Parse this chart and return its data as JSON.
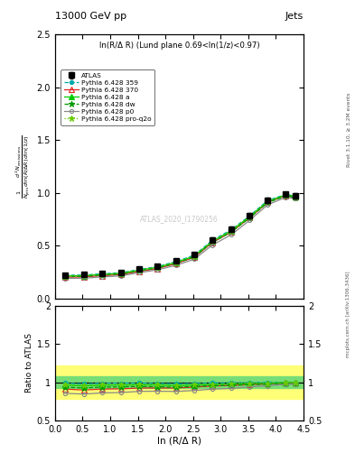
{
  "title": "13000 GeV pp",
  "title_right": "Jets",
  "annotation": "ln(R/Δ R) (Lund plane 0.69<ln(1/z)<0.97)",
  "watermark": "ATLAS_2020_I1790256",
  "rivet_label": "Rivet 3.1.10, ≥ 3.2M events",
  "mcplots_label": "mcplots.cern.ch [arXiv:1306.3436]",
  "xlabel": "ln (R/Δ R)",
  "ylabel_ratio": "Ratio to ATLAS",
  "xlim": [
    0,
    4.5
  ],
  "ylim_main": [
    0.0,
    2.5
  ],
  "ylim_ratio": [
    0.5,
    2.0
  ],
  "x_atlas": [
    0.18,
    0.52,
    0.85,
    1.19,
    1.52,
    1.85,
    2.19,
    2.52,
    2.85,
    3.19,
    3.52,
    3.85,
    4.18,
    4.35
  ],
  "y_atlas": [
    0.22,
    0.225,
    0.235,
    0.245,
    0.275,
    0.305,
    0.355,
    0.415,
    0.555,
    0.655,
    0.785,
    0.93,
    0.985,
    0.97
  ],
  "y_atlas_err": [
    0.015,
    0.012,
    0.012,
    0.012,
    0.013,
    0.014,
    0.016,
    0.02,
    0.023,
    0.026,
    0.028,
    0.028,
    0.023,
    0.023
  ],
  "x_mc": [
    0.18,
    0.52,
    0.85,
    1.19,
    1.52,
    1.85,
    2.19,
    2.52,
    2.85,
    3.19,
    3.52,
    3.85,
    4.18,
    4.35
  ],
  "series": [
    {
      "label": "Pythia 6.428 359",
      "color": "#00AAAA",
      "linestyle": "--",
      "marker": "o",
      "markersize": 3,
      "mfc": true,
      "y": [
        0.218,
        0.22,
        0.232,
        0.242,
        0.272,
        0.3,
        0.348,
        0.408,
        0.55,
        0.65,
        0.78,
        0.928,
        0.985,
        0.97
      ],
      "ratio": [
        0.99,
        0.978,
        0.987,
        0.988,
        0.99,
        0.984,
        0.979,
        0.983,
        0.991,
        0.992,
        0.994,
        0.998,
        1.0,
        1.0
      ]
    },
    {
      "label": "Pythia 6.428 370",
      "color": "#DD2222",
      "linestyle": "-",
      "marker": "^",
      "markersize": 4,
      "mfc": false,
      "y": [
        0.2,
        0.202,
        0.214,
        0.224,
        0.254,
        0.282,
        0.328,
        0.388,
        0.528,
        0.628,
        0.762,
        0.91,
        0.975,
        0.96
      ],
      "ratio": [
        0.91,
        0.899,
        0.91,
        0.914,
        0.924,
        0.925,
        0.924,
        0.937,
        0.951,
        0.958,
        0.97,
        0.978,
        0.99,
        0.99
      ]
    },
    {
      "label": "Pythia 6.428 a",
      "color": "#00CC00",
      "linestyle": "-",
      "marker": "^",
      "markersize": 4,
      "mfc": true,
      "y": [
        0.212,
        0.214,
        0.226,
        0.236,
        0.266,
        0.294,
        0.34,
        0.4,
        0.54,
        0.64,
        0.772,
        0.918,
        0.98,
        0.965
      ],
      "ratio": [
        0.964,
        0.952,
        0.962,
        0.963,
        0.967,
        0.964,
        0.957,
        0.964,
        0.973,
        0.977,
        0.983,
        0.987,
        0.995,
        0.995
      ]
    },
    {
      "label": "Pythia 6.428 dw",
      "color": "#009900",
      "linestyle": "--",
      "marker": "*",
      "markersize": 5,
      "mfc": true,
      "y": [
        0.206,
        0.208,
        0.22,
        0.23,
        0.26,
        0.287,
        0.332,
        0.392,
        0.53,
        0.628,
        0.76,
        0.906,
        0.97,
        0.956
      ],
      "ratio": [
        0.936,
        0.925,
        0.936,
        0.939,
        0.945,
        0.941,
        0.934,
        0.945,
        0.955,
        0.959,
        0.969,
        0.975,
        0.985,
        0.985
      ]
    },
    {
      "label": "Pythia 6.428 p0",
      "color": "#888888",
      "linestyle": "-",
      "marker": "o",
      "markersize": 3,
      "mfc": false,
      "y": [
        0.188,
        0.19,
        0.202,
        0.212,
        0.242,
        0.269,
        0.312,
        0.37,
        0.505,
        0.602,
        0.738,
        0.886,
        0.958,
        0.944
      ],
      "ratio": [
        0.855,
        0.845,
        0.86,
        0.865,
        0.88,
        0.882,
        0.879,
        0.892,
        0.91,
        0.919,
        0.94,
        0.953,
        0.973,
        0.973
      ]
    },
    {
      "label": "Pythia 6.428 pro-q2o",
      "color": "#66CC00",
      "linestyle": ":",
      "marker": "*",
      "markersize": 5,
      "mfc": true,
      "y": [
        0.213,
        0.215,
        0.227,
        0.237,
        0.267,
        0.295,
        0.341,
        0.401,
        0.541,
        0.641,
        0.773,
        0.919,
        0.981,
        0.966
      ],
      "ratio": [
        0.968,
        0.957,
        0.966,
        0.967,
        0.97,
        0.967,
        0.96,
        0.966,
        0.975,
        0.979,
        0.985,
        0.989,
        0.996,
        0.996
      ]
    }
  ],
  "band_yellow_low": 0.78,
  "band_yellow_high": 1.22,
  "band_green_low": 0.92,
  "band_green_high": 1.08
}
